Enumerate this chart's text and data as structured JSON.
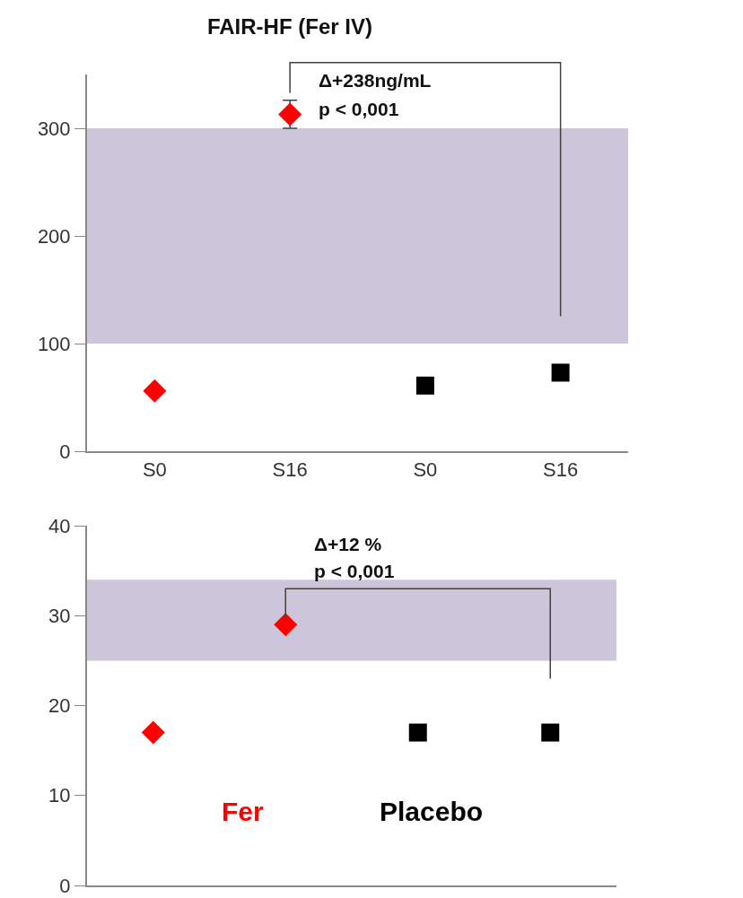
{
  "chart_data": [
    {
      "type": "scatter",
      "title": "FAIR-HF (Fer IV)",
      "categories": [
        "S0",
        "S16",
        "S0",
        "S16"
      ],
      "series": [
        {
          "color": "#ff0000",
          "marker": "diamond",
          "values": [
            56,
            313,
            null,
            null
          ],
          "errors": [
            null,
            13,
            null,
            null
          ]
        },
        {
          "color": "#000000",
          "marker": "square",
          "values": [
            null,
            null,
            61,
            73
          ]
        }
      ],
      "ylim": [
        0,
        350
      ],
      "yticks": [
        0,
        100,
        200,
        300
      ],
      "bands": [
        {
          "axis": "y",
          "from": 100,
          "to": 300,
          "color": "#cdc5da"
        }
      ],
      "annotations": [
        "Δ+238ng/mL",
        "p < 0,001"
      ]
    },
    {
      "type": "scatter",
      "categories": [
        null,
        null,
        null,
        null
      ],
      "series": [
        {
          "name": "Fer",
          "color": "#ff0000",
          "marker": "diamond",
          "values": [
            17,
            29,
            null,
            null
          ]
        },
        {
          "name": "Placebo",
          "color": "#000000",
          "marker": "square",
          "values": [
            null,
            null,
            17,
            17
          ]
        }
      ],
      "ylim": [
        0,
        40
      ],
      "yticks": [
        0,
        10,
        20,
        30,
        40
      ],
      "tick_labels": "y",
      "bands": [
        {
          "axis": "y",
          "from": 25,
          "to": 34,
          "color": "#cdc5da"
        }
      ],
      "annotations": [
        "Δ+12 %",
        "p < 0,001"
      ]
    }
  ]
}
